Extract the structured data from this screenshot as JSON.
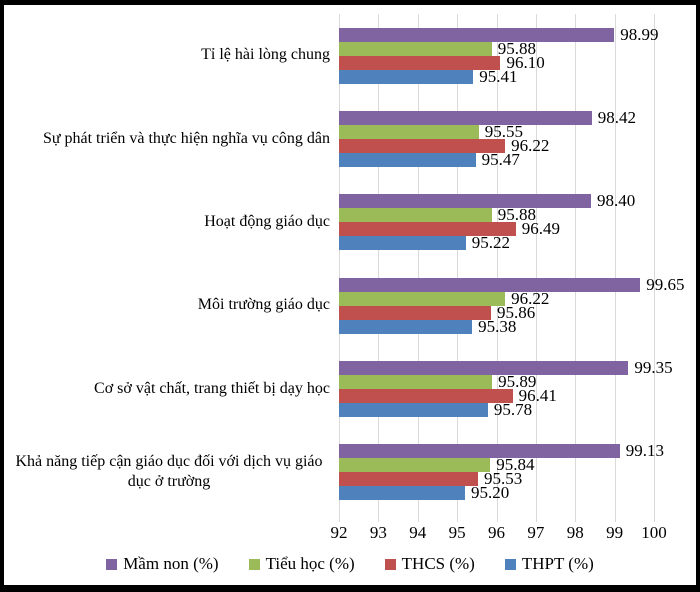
{
  "frame": {
    "background": "#ffffff",
    "border_color": "#000000"
  },
  "chart_data": {
    "type": "bar",
    "orientation": "horizontal",
    "title": "",
    "xlabel": "",
    "ylabel": "",
    "categories": [
      "Tỉ lệ hài lòng chung",
      "Sự phát triển và thực hiện nghĩa vụ công dân",
      "Hoạt động giáo dục",
      "Môi trường giáo dục",
      "Cơ sở vật chất, trang thiết bị dạy học",
      "Khả năng tiếp cận giáo dục đối với dịch vụ giáo dục ở trường"
    ],
    "series": [
      {
        "name": "Mầm non (%)",
        "color": "#8064A2",
        "values": [
          98.99,
          98.42,
          98.4,
          99.65,
          99.35,
          99.13
        ]
      },
      {
        "name": "Tiểu học (%)",
        "color": "#9BBB59",
        "values": [
          95.88,
          95.55,
          95.88,
          96.22,
          95.89,
          95.84
        ]
      },
      {
        "name": "THCS (%)",
        "color": "#C0504D",
        "values": [
          96.1,
          96.22,
          96.49,
          95.86,
          96.41,
          95.53
        ]
      },
      {
        "name": "THPT (%)",
        "color": "#4F81BD",
        "values": [
          95.41,
          95.47,
          95.22,
          95.38,
          95.78,
          95.2
        ]
      }
    ],
    "xlim": [
      92,
      100
    ],
    "x_ticks": [
      92,
      93,
      94,
      95,
      96,
      97,
      98,
      99,
      100
    ],
    "value_label_decimals": 2,
    "grid": true,
    "gridline_color": "#D9D9D9",
    "legend_position": "bottom"
  }
}
